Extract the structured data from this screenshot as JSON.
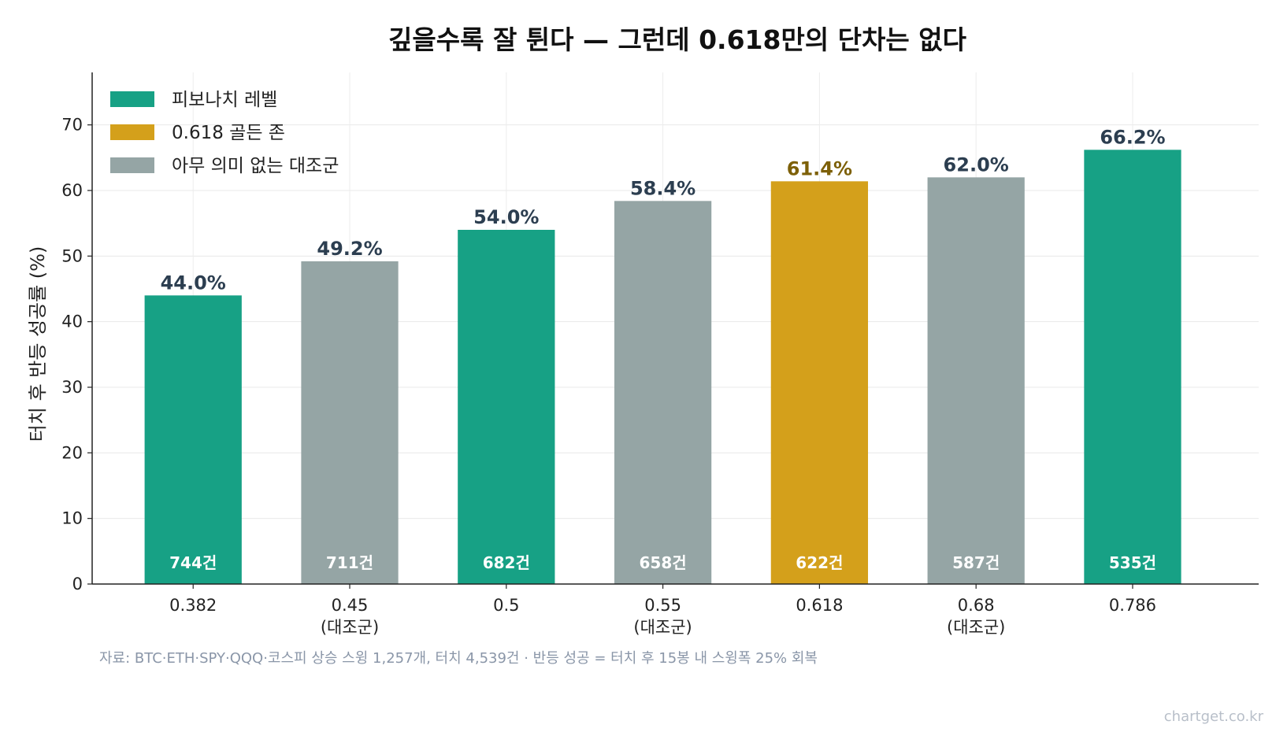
{
  "chart_data": {
    "type": "bar",
    "title": "깊을수록 잘 튄다 — 그런데 0.618만의 단차는 없다",
    "ylabel": "터치 후 반등 성공률 (%)",
    "xlabel": "",
    "ylim": [
      0,
      78
    ],
    "yticks": [
      0,
      10,
      20,
      30,
      40,
      50,
      60,
      70
    ],
    "grid": true,
    "legend_position": "top-left",
    "categories": [
      {
        "name": "0.382",
        "sub": ""
      },
      {
        "name": "0.45",
        "sub": "(대조군)"
      },
      {
        "name": "0.5",
        "sub": ""
      },
      {
        "name": "0.55",
        "sub": "(대조군)"
      },
      {
        "name": "0.618",
        "sub": ""
      },
      {
        "name": "0.68",
        "sub": "(대조군)"
      },
      {
        "name": "0.786",
        "sub": ""
      }
    ],
    "values": [
      44.0,
      49.2,
      54.0,
      58.4,
      61.4,
      62.0,
      66.2
    ],
    "value_labels": [
      "44.0%",
      "49.2%",
      "54.0%",
      "58.4%",
      "61.4%",
      "62.0%",
      "66.2%"
    ],
    "count_labels": [
      "744건",
      "711건",
      "682건",
      "658건",
      "622건",
      "587건",
      "535건"
    ],
    "groups": [
      "fib",
      "control",
      "fib",
      "control",
      "golden",
      "control",
      "fib"
    ],
    "legend": [
      {
        "key": "fib",
        "label": "피보나치 레벨",
        "color": "#17a185"
      },
      {
        "key": "golden",
        "label": "0.618 골든 존",
        "color": "#d4a01b"
      },
      {
        "key": "control",
        "label": "아무 의미 없는 대조군",
        "color": "#95a5a5"
      }
    ],
    "colors": {
      "fib": "#17a185",
      "golden": "#d4a01b",
      "control": "#95a5a5",
      "value_text": "#2c3e50",
      "golden_value_text": "#7d6008"
    },
    "source": "자료: BTC·ETH·SPY·QQQ·코스피 상승 스윙 1,257개, 터치 4,539건 · 반등 성공 = 터치 후 15봉 내 스윙폭 25% 회복"
  },
  "credit": "chartget.co.kr"
}
